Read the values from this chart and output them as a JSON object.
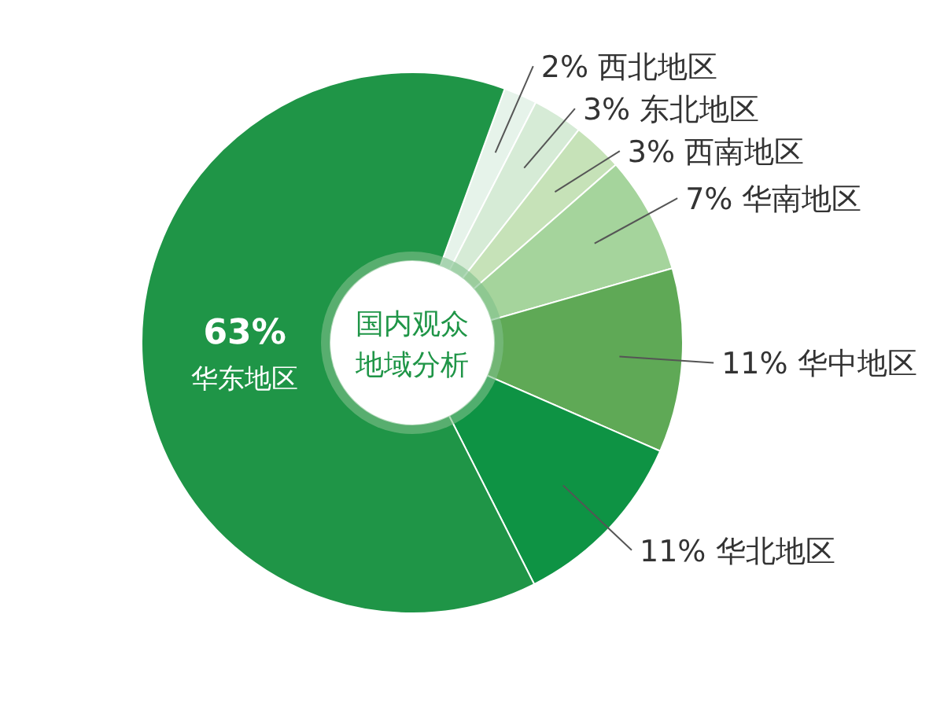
{
  "chart_data": {
    "type": "donut",
    "title": "国内观众地域分析",
    "categories": [
      "西北地区",
      "东北地区",
      "西南地区",
      "华南地区",
      "华中地区",
      "华北地区",
      "华东地区"
    ],
    "values": [
      2,
      3,
      3,
      7,
      11,
      11,
      63
    ],
    "value_labels": [
      "2%",
      "3%",
      "3%",
      "7%",
      "11%",
      "11%",
      "63%"
    ],
    "colors": [
      "#e6f3ea",
      "#d6ebd6",
      "#c6e2b8",
      "#a5d49c",
      "#5fa956",
      "#0e9344",
      "#1f9547"
    ]
  }
}
